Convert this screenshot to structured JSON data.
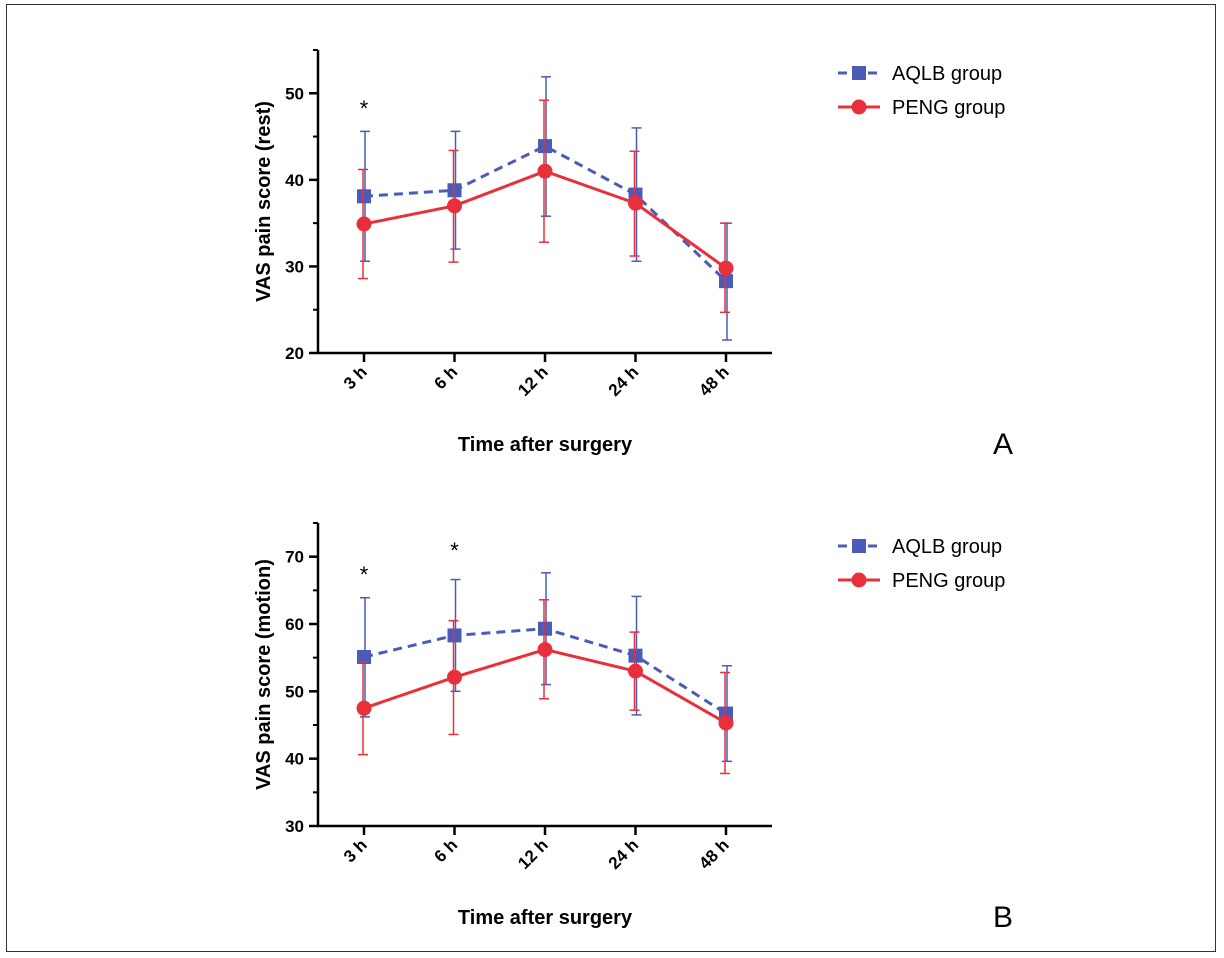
{
  "colors": {
    "aqlb": "#4a5cb8",
    "peng": "#e8303a"
  },
  "chart_data": [
    {
      "panel_label": "A",
      "type": "line",
      "categories": [
        "3 h",
        "6 h",
        "12 h",
        "24 h",
        "48 h"
      ],
      "xlabel": "Time after surgery",
      "ylabel": "VAS pain score (rest)",
      "ylim": [
        20,
        55
      ],
      "yticks": [
        20,
        30,
        40,
        50
      ],
      "significance": [
        "*",
        "",
        "",
        "",
        ""
      ],
      "legend_position": "top-right",
      "series": [
        {
          "name": "AQLB group",
          "marker": "square",
          "line": "dashed",
          "values": [
            38.1,
            38.8,
            43.9,
            38.3,
            28.3
          ],
          "err_low": [
            30.6,
            32.0,
            35.8,
            30.6,
            21.5
          ],
          "err_high": [
            45.6,
            45.6,
            51.9,
            46.0,
            35.0
          ]
        },
        {
          "name": "PENG group",
          "marker": "circle",
          "line": "solid",
          "values": [
            34.9,
            37.0,
            41.0,
            37.3,
            29.8
          ],
          "err_low": [
            28.6,
            30.5,
            32.8,
            31.2,
            24.7
          ],
          "err_high": [
            41.2,
            43.4,
            49.2,
            43.3,
            35.0
          ]
        }
      ]
    },
    {
      "panel_label": "B",
      "type": "line",
      "categories": [
        "3 h",
        "6 h",
        "12 h",
        "24 h",
        "48 h"
      ],
      "xlabel": "Time after surgery",
      "ylabel": "VAS pain score (motion)",
      "ylim": [
        30,
        75
      ],
      "yticks": [
        30,
        40,
        50,
        60,
        70
      ],
      "significance": [
        "*",
        "*",
        "",
        "",
        ""
      ],
      "legend_position": "top-right",
      "series": [
        {
          "name": "AQLB group",
          "marker": "square",
          "line": "dashed",
          "values": [
            55.1,
            58.3,
            59.3,
            55.3,
            46.7
          ],
          "err_low": [
            46.2,
            50.0,
            51.0,
            46.5,
            39.6
          ],
          "err_high": [
            63.9,
            66.6,
            67.6,
            64.1,
            53.8
          ]
        },
        {
          "name": "PENG group",
          "marker": "circle",
          "line": "solid",
          "values": [
            47.5,
            52.1,
            56.2,
            53.0,
            45.3
          ],
          "err_low": [
            40.6,
            43.6,
            48.9,
            47.2,
            37.8
          ],
          "err_high": [
            54.4,
            60.5,
            63.6,
            58.8,
            52.8
          ]
        }
      ]
    }
  ]
}
